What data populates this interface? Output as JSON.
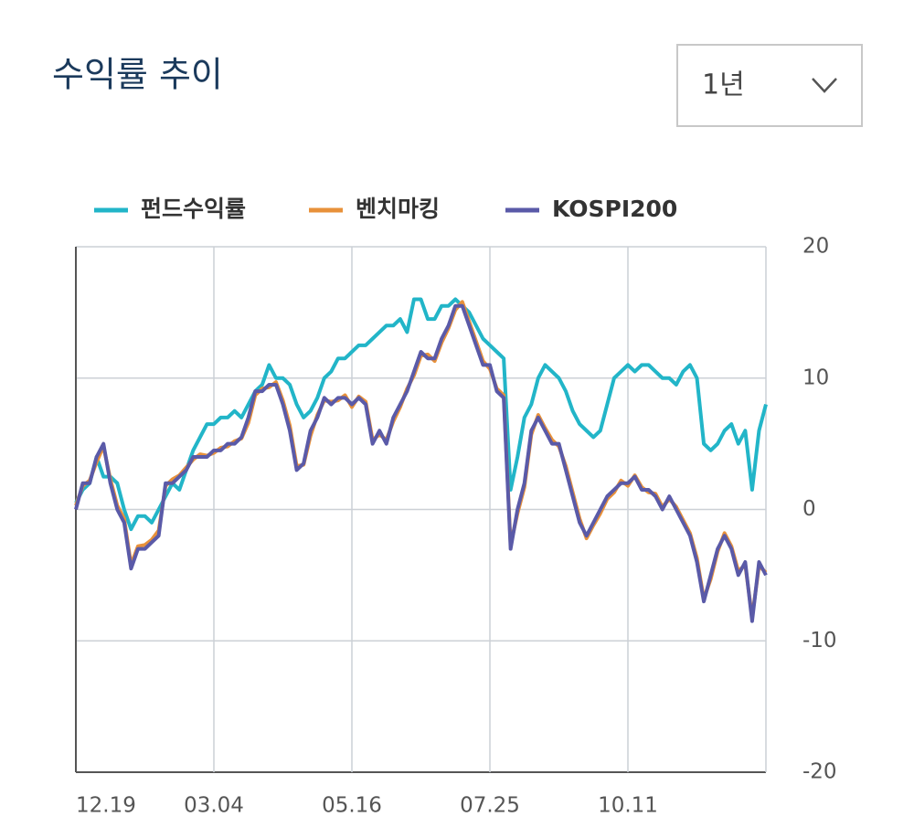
{
  "header": {
    "title": "수익률 추이",
    "period": "1년"
  },
  "chart_data": {
    "type": "line",
    "categories": [
      "12.19",
      null,
      null,
      null,
      null,
      null,
      null,
      null,
      null,
      null,
      null,
      null,
      null,
      null,
      null,
      null,
      null,
      null,
      null,
      null,
      "03.04",
      null,
      null,
      null,
      null,
      null,
      null,
      null,
      null,
      null,
      null,
      null,
      null,
      null,
      null,
      null,
      null,
      null,
      null,
      null,
      "05.16",
      null,
      null,
      null,
      null,
      null,
      null,
      null,
      null,
      null,
      null,
      null,
      null,
      null,
      null,
      null,
      null,
      null,
      null,
      null,
      "07.25",
      null,
      null,
      null,
      null,
      null,
      null,
      null,
      null,
      null,
      null,
      null,
      null,
      null,
      null,
      null,
      null,
      null,
      null,
      null,
      "10.11",
      null,
      null,
      null,
      null,
      null,
      null,
      null,
      null,
      null,
      null,
      null,
      null,
      null,
      null,
      null,
      null,
      null,
      null,
      null,
      null
    ],
    "series": [
      {
        "name": "펀드수익률",
        "color": "#22b5c8",
        "values": [
          0.5,
          1.5,
          2,
          4,
          2.5,
          2.5,
          2,
          0,
          -1.5,
          -0.5,
          -0.5,
          -1,
          0,
          1,
          2,
          1.5,
          3,
          4.5,
          5.5,
          6.5,
          6.5,
          7,
          7,
          7.5,
          7,
          8,
          9,
          9.5,
          11,
          10,
          10,
          9.5,
          8,
          7,
          7.5,
          8.5,
          10,
          10.5,
          11.5,
          11.5,
          12,
          12.5,
          12.5,
          13,
          13.5,
          14,
          14,
          14.5,
          13.5,
          16,
          16,
          14.5,
          14.5,
          15.5,
          15.5,
          16,
          15.5,
          15,
          14,
          13,
          12.5,
          12,
          11.5,
          1.5,
          4,
          7,
          8,
          10,
          11,
          10.5,
          10,
          9,
          7.5,
          6.5,
          6,
          5.5,
          6,
          8,
          10,
          10.5,
          11,
          10.5,
          11,
          11,
          10.5,
          10,
          10,
          9.5,
          10.5,
          11,
          10,
          5,
          4.5,
          5,
          6,
          6.5,
          5,
          6,
          1.5,
          6,
          8
        ]
      },
      {
        "name": "벤치마킹",
        "color": "#e8913a",
        "values": [
          0.3,
          1.8,
          2.2,
          3.6,
          4.8,
          2.3,
          0.3,
          -0.7,
          -4.2,
          -2.8,
          -2.7,
          -2.3,
          -1.6,
          1.8,
          2.3,
          2.6,
          3.2,
          3.8,
          4.2,
          4.1,
          4.3,
          4.7,
          4.8,
          5.2,
          5.4,
          6.6,
          8.7,
          9.2,
          9.3,
          9.7,
          8.3,
          6.4,
          3.3,
          3.4,
          5.6,
          7.2,
          8.3,
          8.2,
          8.3,
          8.7,
          7.8,
          8.6,
          8.2,
          5.3,
          5.7,
          5.3,
          6.7,
          7.8,
          9.2,
          10.2,
          11.7,
          11.8,
          11.3,
          12.7,
          13.8,
          15.2,
          15.8,
          14.3,
          12.8,
          11.3,
          10.7,
          9.2,
          8.7,
          -2.7,
          -0.3,
          1.7,
          5.7,
          7.2,
          6.2,
          5.3,
          4.8,
          3.3,
          1.3,
          -0.7,
          -2.2,
          -1.2,
          -0.3,
          0.8,
          1.3,
          2.2,
          1.8,
          2.6,
          1.7,
          1.3,
          1.2,
          0.2,
          0.8,
          0.2,
          -0.8,
          -1.8,
          -3.7,
          -6.8,
          -5.3,
          -3.2,
          -1.8,
          -2.8,
          -4.7,
          -4.2,
          -8.2,
          -4.3,
          -4.8
        ]
      },
      {
        "name": "KOSPI200",
        "color": "#5a5aa8",
        "values": [
          0,
          2,
          2,
          4,
          5,
          2,
          0,
          -1,
          -4.5,
          -3,
          -3,
          -2.5,
          -2,
          2,
          2,
          2.5,
          3,
          4,
          4,
          4,
          4.5,
          4.5,
          5,
          5,
          5.5,
          7,
          9,
          9,
          9.5,
          9.5,
          8,
          6,
          3,
          3.5,
          6,
          7,
          8.5,
          8,
          8.5,
          8.5,
          8,
          8.5,
          8,
          5,
          6,
          5,
          7,
          8,
          9,
          10.5,
          12,
          11.5,
          11.5,
          13,
          14,
          15.5,
          15.5,
          14,
          12.5,
          11,
          11,
          9,
          8.5,
          -3,
          0,
          2,
          6,
          7,
          6,
          5,
          5,
          3,
          1,
          -1,
          -2,
          -1,
          0,
          1,
          1.5,
          2,
          2,
          2.5,
          1.5,
          1.5,
          1,
          0,
          1,
          0,
          -1,
          -2,
          -4,
          -7,
          -5,
          -3,
          -2,
          -3,
          -5,
          -4,
          -8.5,
          -4,
          -5
        ]
      }
    ],
    "ylim": [
      -20,
      20
    ],
    "yticks": [
      -20,
      -10,
      0,
      10,
      20
    ],
    "grid": true,
    "legend": "top"
  }
}
